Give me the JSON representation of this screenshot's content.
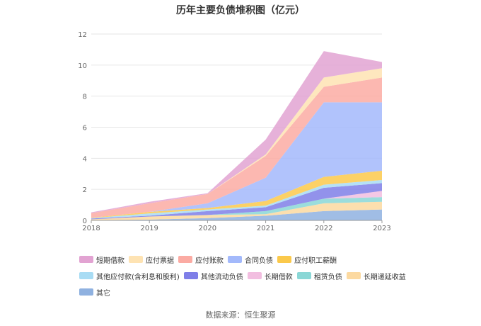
{
  "chart_data": {
    "type": "area",
    "title": "历年主要负债堆积图（亿元）",
    "x": [
      "2018",
      "2019",
      "2020",
      "2021",
      "2022",
      "2023"
    ],
    "ylim": [
      0,
      12
    ],
    "yticks": [
      0,
      2,
      4,
      6,
      8,
      10,
      12
    ],
    "grid": true,
    "legend_position": "bottom",
    "stacked": true,
    "series": [
      {
        "name": "其它",
        "color": "#8fb1e0",
        "values": [
          0.02,
          0.05,
          0.15,
          0.3,
          0.6,
          0.7
        ]
      },
      {
        "name": "长期递延收益",
        "color": "#fcd9a0",
        "values": [
          0.05,
          0.2,
          0.2,
          0.1,
          0.5,
          0.5
        ]
      },
      {
        "name": "租赁负债",
        "color": "#8ad7d6",
        "values": [
          0.0,
          0.0,
          0.0,
          0.2,
          0.3,
          0.3
        ]
      },
      {
        "name": "长期借款",
        "color": "#f2bee0",
        "values": [
          0.0,
          0.0,
          0.0,
          0.0,
          0.0,
          0.4
        ]
      },
      {
        "name": "其他流动负债",
        "color": "#7f7fe8",
        "values": [
          0.05,
          0.05,
          0.25,
          0.25,
          0.7,
          0.5
        ]
      },
      {
        "name": "其他应付款(含利息和股利)",
        "color": "#a8dcf4",
        "values": [
          0.03,
          0.15,
          0.1,
          0.1,
          0.2,
          0.2
        ]
      },
      {
        "name": "应付职工薪酬",
        "color": "#fbc94b",
        "values": [
          0.02,
          0.1,
          0.1,
          0.3,
          0.5,
          0.6
        ]
      },
      {
        "name": "合同负债",
        "color": "#a3b9fb",
        "values": [
          0.0,
          0.0,
          0.3,
          1.5,
          4.8,
          4.4
        ]
      },
      {
        "name": "应付账款",
        "color": "#fbaba3",
        "values": [
          0.3,
          0.55,
          0.6,
          1.4,
          1.0,
          1.6
        ]
      },
      {
        "name": "应付票据",
        "color": "#fee3b3",
        "values": [
          0.0,
          0.0,
          0.0,
          0.1,
          0.6,
          0.6
        ]
      },
      {
        "name": "短期借款",
        "color": "#e2a3d2",
        "values": [
          0.05,
          0.1,
          0.05,
          0.95,
          1.7,
          0.4
        ]
      }
    ],
    "legend_order": [
      "短期借款",
      "应付票据",
      "应付账款",
      "合同负债",
      "应付职工薪酬",
      "其他应付款(含利息和股利)",
      "其他流动负债",
      "长期借款",
      "租赁负债",
      "长期递延收益",
      "其它"
    ]
  },
  "source": "数据来源：恒生聚源"
}
